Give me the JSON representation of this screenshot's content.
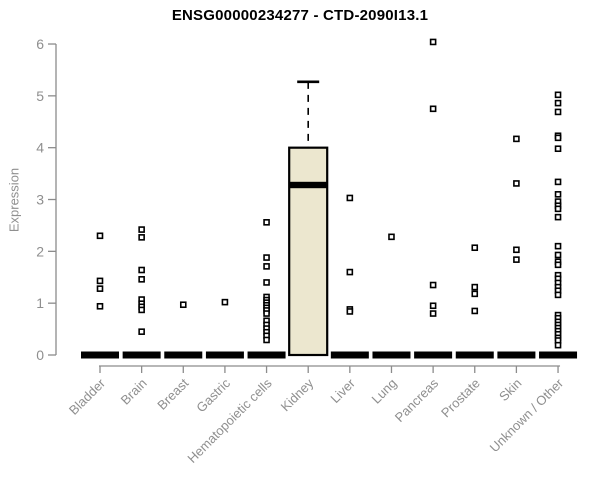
{
  "header": {
    "title": "ENSG00000234277 - CTD-2090I13.1"
  },
  "chart_data": {
    "type": "boxplot",
    "title": "ENSG00000234277 - CTD-2090I13.1",
    "xlabel": "",
    "ylabel": "Expression",
    "ylim": [
      0,
      6
    ],
    "yticks": [
      0,
      1,
      2,
      3,
      4,
      5,
      6
    ],
    "grid": false,
    "legend": false,
    "layout": {
      "x_tick_rotation": -45,
      "points_marker": "open-square"
    },
    "colors": {
      "box_fill": "#ece7cf",
      "box_stroke": "#000000",
      "median": "#000000",
      "collapsed_bar": "#000000",
      "point_stroke": "#000000",
      "point_fill": "#ffffff",
      "axis": "#8c8c8c",
      "tick_label": "#8f8f8f",
      "title": "#000000"
    },
    "categories": [
      "Bladder",
      "Brain",
      "Breast",
      "Gastric",
      "Hematopoietic cells",
      "Kidney",
      "Liver",
      "Lung",
      "Pancreas",
      "Prostate",
      "Skin",
      "Unknown / Other"
    ],
    "series": [
      {
        "name": "Bladder",
        "box": {
          "low": 0,
          "q1": 0,
          "median": 0,
          "q3": 0,
          "high": 0
        },
        "points": [
          2.3,
          1.43,
          1.28,
          0.94
        ]
      },
      {
        "name": "Brain",
        "box": {
          "low": 0,
          "q1": 0,
          "median": 0,
          "q3": 0,
          "high": 0
        },
        "points": [
          2.42,
          2.27,
          1.64,
          1.46,
          1.07,
          0.99,
          0.93,
          0.87,
          0.45
        ]
      },
      {
        "name": "Breast",
        "box": {
          "low": 0,
          "q1": 0,
          "median": 0,
          "q3": 0,
          "high": 0
        },
        "points": [
          0.97
        ]
      },
      {
        "name": "Gastric",
        "box": {
          "low": 0,
          "q1": 0,
          "median": 0,
          "q3": 0,
          "high": 0
        },
        "points": [
          1.02
        ]
      },
      {
        "name": "Hematopoietic cells",
        "box": {
          "low": 0,
          "q1": 0,
          "median": 0,
          "q3": 0,
          "high": 0
        },
        "points": [
          2.56,
          1.88,
          1.71,
          1.4,
          1.12,
          1.06,
          1.01,
          0.96,
          0.91,
          0.86,
          0.8,
          0.66,
          0.58,
          0.51,
          0.44,
          0.37,
          0.29
        ]
      },
      {
        "name": "Kidney",
        "box": {
          "low": 0,
          "q1": 0,
          "median": 3.28,
          "q3": 4.0,
          "high": 5.27
        },
        "points": []
      },
      {
        "name": "Liver",
        "box": {
          "low": 0,
          "q1": 0,
          "median": 0,
          "q3": 0,
          "high": 0
        },
        "points": [
          3.03,
          1.6,
          0.88,
          0.84
        ]
      },
      {
        "name": "Lung",
        "box": {
          "low": 0,
          "q1": 0,
          "median": 0,
          "q3": 0,
          "high": 0
        },
        "points": [
          2.28
        ]
      },
      {
        "name": "Pancreas",
        "box": {
          "low": 0,
          "q1": 0,
          "median": 0,
          "q3": 0,
          "high": 0
        },
        "points": [
          6.04,
          4.75,
          1.35,
          0.95,
          0.8
        ]
      },
      {
        "name": "Prostate",
        "box": {
          "low": 0,
          "q1": 0,
          "median": 0,
          "q3": 0,
          "high": 0
        },
        "points": [
          2.07,
          1.31,
          1.18,
          0.85
        ]
      },
      {
        "name": "Skin",
        "box": {
          "low": 0,
          "q1": 0,
          "median": 0,
          "q3": 0,
          "high": 0
        },
        "points": [
          4.17,
          3.31,
          2.03,
          1.84
        ]
      },
      {
        "name": "Unknown / Other",
        "box": {
          "low": 0,
          "q1": 0,
          "median": 0,
          "q3": 0,
          "high": 0
        },
        "points": [
          5.02,
          4.86,
          4.69,
          4.23,
          4.19,
          3.98,
          3.34,
          3.1,
          2.96,
          2.88,
          2.82,
          2.66,
          2.1,
          1.93,
          1.8,
          1.74,
          1.54,
          1.47,
          1.39,
          1.31,
          1.24,
          1.16,
          0.77,
          0.71,
          0.64,
          0.58,
          0.52,
          0.46,
          0.4,
          0.33,
          0.28,
          0.19
        ]
      }
    ]
  }
}
